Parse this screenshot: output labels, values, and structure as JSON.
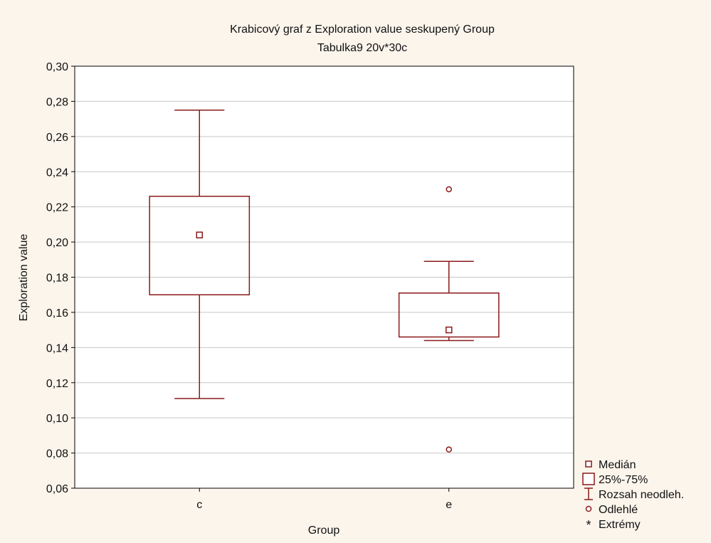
{
  "chart_data": {
    "type": "box",
    "title": "Krabicový graf z Exploration value seskupený Group",
    "subtitle": "Tabulka9 20v*30c",
    "xlabel": "Group",
    "ylabel": "Exploration value",
    "ylim": [
      0.06,
      0.3
    ],
    "yticks": [
      0.06,
      0.08,
      0.1,
      0.12,
      0.14,
      0.16,
      0.18,
      0.2,
      0.22,
      0.24,
      0.26,
      0.28,
      0.3
    ],
    "grid": true,
    "legend_position": "bottom-right",
    "categories": [
      "c",
      "e"
    ],
    "groups": [
      {
        "category": "c",
        "median": 0.204,
        "q1": 0.17,
        "q3": 0.226,
        "whisker_low": 0.111,
        "whisker_high": 0.275,
        "outliers": [],
        "extremes": []
      },
      {
        "category": "e",
        "median": 0.15,
        "q1": 0.146,
        "q3": 0.171,
        "whisker_low": 0.144,
        "whisker_high": 0.189,
        "outliers": [
          0.23,
          0.082
        ],
        "extremes": []
      }
    ],
    "legend": [
      "Medián",
      "25%-75%",
      "Rozsah neodleh.",
      "Odlehlé",
      "Extrémy"
    ],
    "colors": {
      "box": "#8b1a1a",
      "grid": "#c8c8c8",
      "plot_bg": "#ffffff",
      "page_bg": "#fbf5ec"
    }
  }
}
